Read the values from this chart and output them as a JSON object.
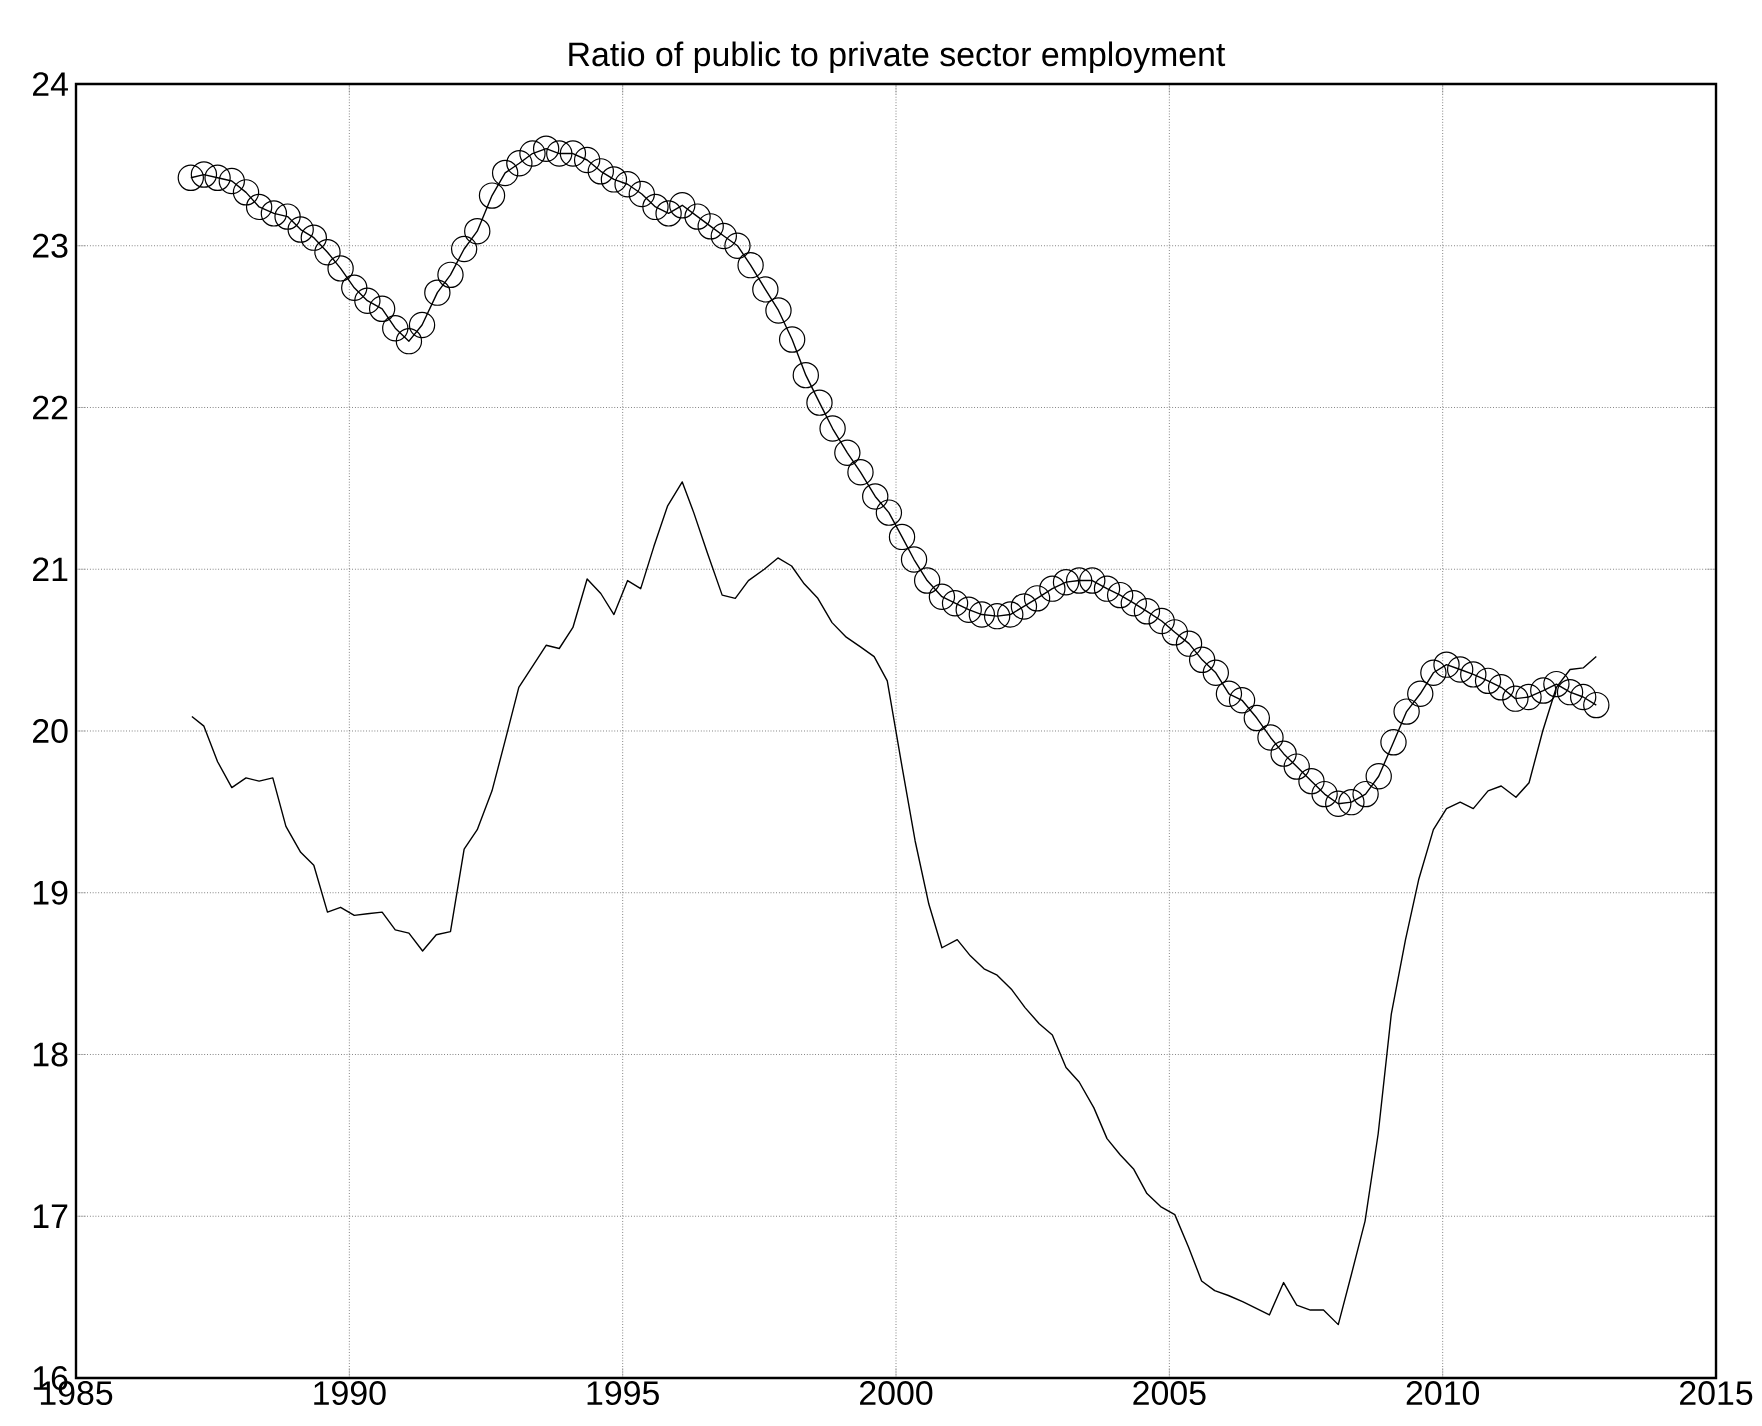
{
  "chart_data": {
    "type": "line",
    "title": "Ratio of public to private sector employment",
    "xlim": [
      1985,
      2015
    ],
    "xticks": [
      1985,
      1990,
      1995,
      2000,
      2005,
      2010,
      2015
    ],
    "ylim": [
      16,
      24
    ],
    "yticks": [
      16,
      17,
      18,
      19,
      20,
      21,
      22,
      23,
      24
    ],
    "grid": true,
    "series": [
      {
        "color": "#000000",
        "marker": "circle",
        "x": [
          1987.1,
          1987.34,
          1987.59,
          1987.85,
          1988.11,
          1988.35,
          1988.62,
          1988.87,
          1989.11,
          1989.35,
          1989.6,
          1989.84,
          1990.09,
          1990.33,
          1990.6,
          1990.84,
          1991.09,
          1991.33,
          1991.61,
          1991.85,
          1992.1,
          1992.34,
          1992.61,
          1992.85,
          1993.11,
          1993.35,
          1993.6,
          1993.84,
          1994.09,
          1994.35,
          1994.6,
          1994.84,
          1995.09,
          1995.35,
          1995.6,
          1995.84,
          1996.09,
          1996.37,
          1996.61,
          1996.85,
          1997.1,
          1997.34,
          1997.61,
          1997.85,
          1998.1,
          1998.35,
          1998.6,
          1998.84,
          1999.11,
          1999.35,
          1999.62,
          1999.87,
          2000.11,
          2000.33,
          2000.57,
          2000.84,
          2001.08,
          2001.33,
          2001.57,
          2001.85,
          2002.09,
          2002.34,
          2002.58,
          2002.86,
          2003.11,
          2003.35,
          2003.59,
          2003.86,
          2004.1,
          2004.35,
          2004.59,
          2004.86,
          2005.1,
          2005.36,
          2005.6,
          2005.85,
          2006.09,
          2006.33,
          2006.6,
          2006.85,
          2007.09,
          2007.33,
          2007.6,
          2007.84,
          2008.09,
          2008.33,
          2008.59,
          2008.83,
          2009.1,
          2009.34,
          2009.59,
          2009.83,
          2010.07,
          2010.32,
          2010.56,
          2010.83,
          2011.07,
          2011.33,
          2011.57,
          2011.84,
          2012.08,
          2012.33,
          2012.57,
          2012.81
        ],
        "values": [
          23.42,
          23.44,
          23.42,
          23.4,
          23.33,
          23.24,
          23.2,
          23.18,
          23.1,
          23.05,
          22.96,
          22.86,
          22.74,
          22.66,
          22.61,
          22.49,
          22.41,
          22.51,
          22.71,
          22.82,
          22.98,
          23.09,
          23.31,
          23.45,
          23.51,
          23.57,
          23.6,
          23.57,
          23.57,
          23.53,
          23.46,
          23.41,
          23.38,
          23.32,
          23.24,
          23.2,
          23.25,
          23.18,
          23.12,
          23.06,
          23.0,
          22.88,
          22.73,
          22.6,
          22.42,
          22.2,
          22.03,
          21.87,
          21.72,
          21.6,
          21.45,
          21.35,
          21.2,
          21.06,
          20.93,
          20.83,
          20.79,
          20.75,
          20.72,
          20.71,
          20.72,
          20.77,
          20.82,
          20.88,
          20.92,
          20.93,
          20.93,
          20.88,
          20.84,
          20.79,
          20.74,
          20.68,
          20.61,
          20.54,
          20.44,
          20.36,
          20.23,
          20.19,
          20.08,
          19.96,
          19.86,
          19.78,
          19.69,
          19.61,
          19.55,
          19.56,
          19.61,
          19.72,
          19.93,
          20.12,
          20.23,
          20.36,
          20.41,
          20.38,
          20.35,
          20.31,
          20.27,
          20.2,
          20.21,
          20.25,
          20.29,
          20.24,
          20.21,
          20.16
        ]
      },
      {
        "color": "#000000",
        "marker": "none",
        "x": [
          1987.12,
          1987.34,
          1987.59,
          1987.85,
          1988.11,
          1988.35,
          1988.6,
          1988.84,
          1989.11,
          1989.35,
          1989.6,
          1989.84,
          1990.09,
          1990.33,
          1990.6,
          1990.84,
          1991.09,
          1991.34,
          1991.59,
          1991.85,
          1992.1,
          1992.34,
          1992.61,
          1992.85,
          1993.1,
          1993.6,
          1993.84,
          1994.09,
          1994.35,
          1994.6,
          1994.84,
          1995.09,
          1995.33,
          1995.57,
          1995.82,
          1996.09,
          1996.3,
          1996.55,
          1996.82,
          1997.06,
          1997.3,
          1997.59,
          1997.84,
          1998.09,
          1998.32,
          1998.57,
          1998.83,
          1999.09,
          1999.35,
          1999.6,
          1999.84,
          2000.11,
          2000.35,
          2000.6,
          2000.84,
          2001.12,
          2001.36,
          2001.61,
          2001.85,
          2002.12,
          2002.36,
          2002.62,
          2002.86,
          2003.11,
          2003.35,
          2003.62,
          2003.86,
          2004.1,
          2004.35,
          2004.59,
          2004.84,
          2005.1,
          2005.35,
          2005.59,
          2005.83,
          2006.08,
          2006.35,
          2006.59,
          2006.83,
          2007.09,
          2007.33,
          2007.58,
          2007.82,
          2008.09,
          2008.33,
          2008.58,
          2008.82,
          2009.06,
          2009.32,
          2009.56,
          2009.83,
          2010.07,
          2010.32,
          2010.56,
          2010.83,
          2011.07,
          2011.34,
          2011.58,
          2011.83,
          2012.08,
          2012.33,
          2012.57,
          2012.81
        ],
        "values": [
          20.09,
          20.03,
          19.81,
          19.65,
          19.71,
          19.69,
          19.71,
          19.41,
          19.25,
          19.17,
          18.88,
          18.91,
          18.86,
          18.87,
          18.88,
          18.77,
          18.75,
          18.64,
          18.74,
          18.76,
          19.27,
          19.39,
          19.63,
          19.94,
          20.27,
          20.53,
          20.51,
          20.64,
          20.94,
          20.85,
          20.72,
          20.93,
          20.88,
          21.14,
          21.39,
          21.54,
          21.35,
          21.1,
          20.84,
          20.82,
          20.93,
          21.0,
          21.07,
          21.02,
          20.91,
          20.82,
          20.67,
          20.58,
          20.52,
          20.46,
          20.31,
          19.78,
          19.32,
          18.93,
          18.66,
          18.71,
          18.61,
          18.53,
          18.49,
          18.4,
          18.29,
          18.19,
          18.12,
          17.92,
          17.83,
          17.67,
          17.48,
          17.38,
          17.29,
          17.14,
          17.06,
          17.01,
          16.81,
          16.6,
          16.54,
          16.51,
          16.47,
          16.43,
          16.39,
          16.59,
          16.45,
          16.42,
          16.42,
          16.33,
          16.64,
          16.97,
          17.51,
          18.25,
          18.71,
          19.08,
          19.39,
          19.52,
          19.56,
          19.52,
          19.63,
          19.66,
          19.59,
          19.68,
          20.0,
          20.27,
          20.38,
          20.39,
          20.46
        ]
      }
    ]
  }
}
